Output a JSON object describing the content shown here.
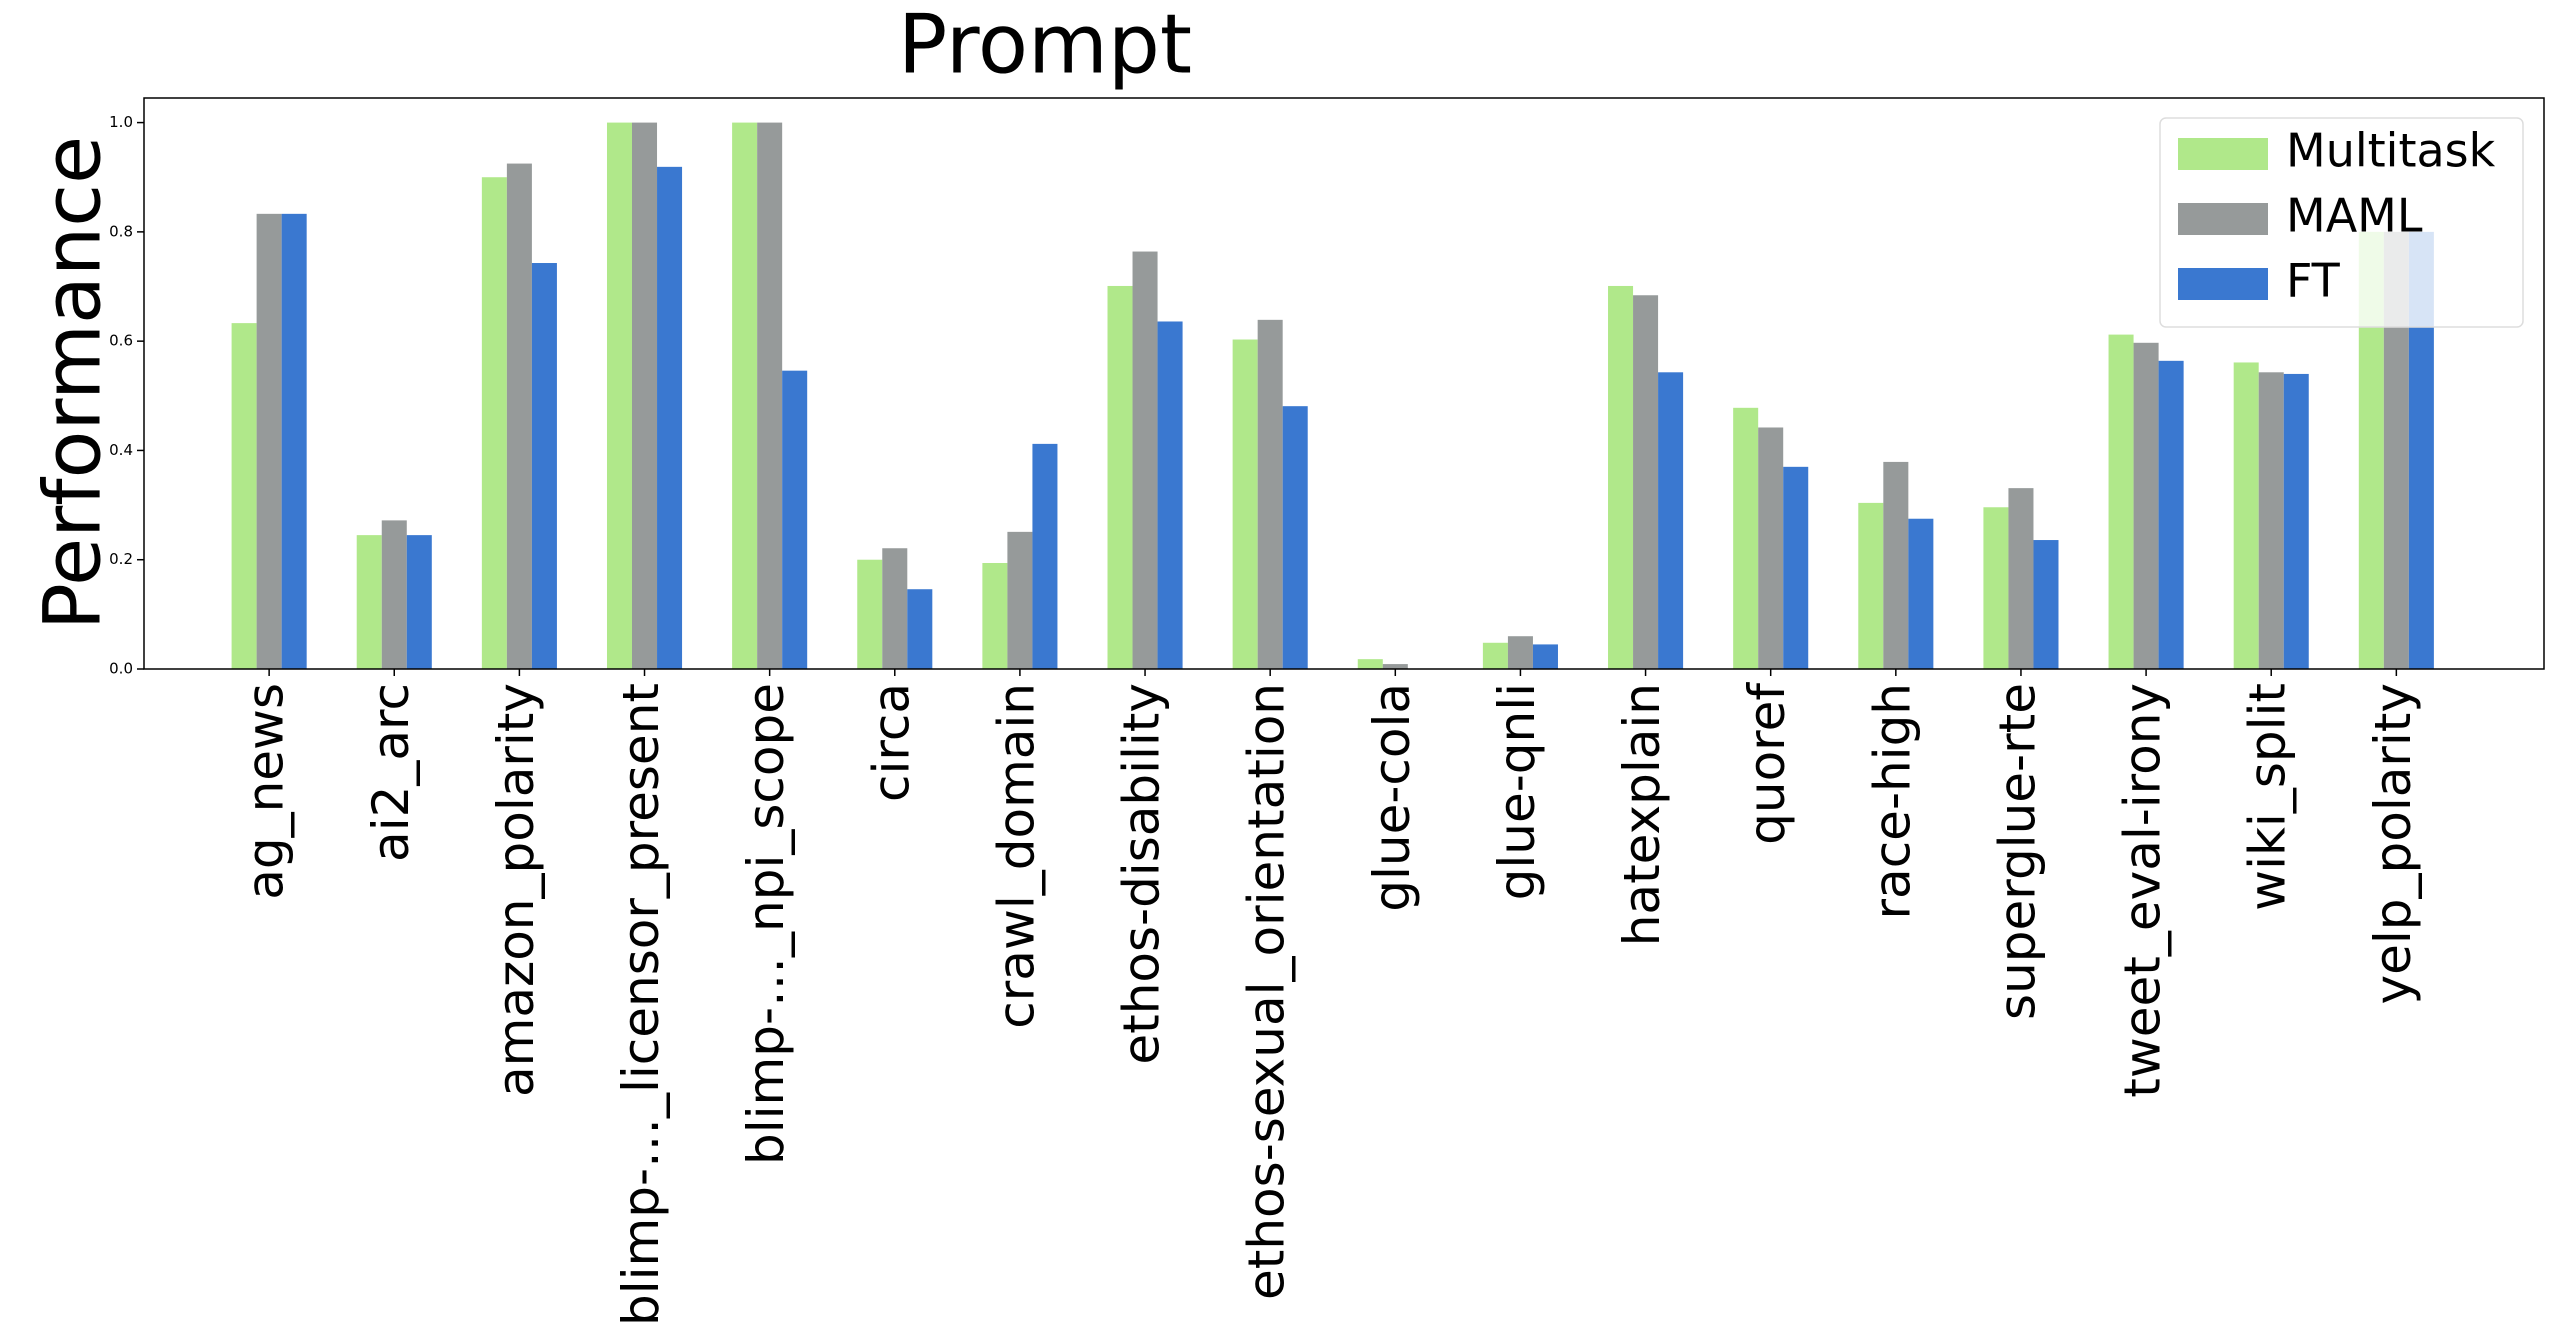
{
  "chart_data": {
    "type": "bar",
    "title": "Prompt",
    "y_label": "Performance",
    "categories": [
      "ag_news",
      "ai2_arc",
      "amazon_polarity",
      "blimp-…_licensor_present",
      "blimp-…_npi_scope",
      "circa",
      "crawl_domain",
      "ethos-disability",
      "ethos-sexual_orientation",
      "glue-cola",
      "glue-qnli",
      "hatexplain",
      "quoref",
      "race-high",
      "superglue-rte",
      "tweet_eval-irony",
      "wiki_split",
      "yelp_polarity"
    ],
    "series": [
      {
        "name": "Multitask",
        "color": "#b0e88a",
        "values": [
          0.633,
          0.245,
          0.9,
          1.0,
          1.0,
          0.2,
          0.194,
          0.701,
          0.603,
          0.018,
          0.048,
          0.701,
          0.478,
          0.304,
          0.296,
          0.612,
          0.561,
          0.8
        ]
      },
      {
        "name": "MAML",
        "color": "#969a9a",
        "values": [
          0.833,
          0.272,
          0.925,
          1.0,
          1.0,
          0.221,
          0.251,
          0.764,
          0.639,
          0.009,
          0.06,
          0.684,
          0.442,
          0.379,
          0.331,
          0.597,
          0.543,
          0.8
        ]
      },
      {
        "name": "FT",
        "color": "#3a78d0",
        "values": [
          0.833,
          0.245,
          0.743,
          0.919,
          0.546,
          0.146,
          0.412,
          0.636,
          0.481,
          0,
          0.045,
          0.543,
          0.37,
          0.275,
          0.236,
          0.564,
          0.54,
          0.8
        ]
      }
    ],
    "ylim": [
      0,
      1.045
    ],
    "yticks": [
      {
        "value": 0,
        "label": "0.0"
      },
      0.2,
      0.4,
      0.6,
      0.8,
      {
        "value": 1,
        "label": "1.0"
      }
    ],
    "legend": "upper right"
  }
}
